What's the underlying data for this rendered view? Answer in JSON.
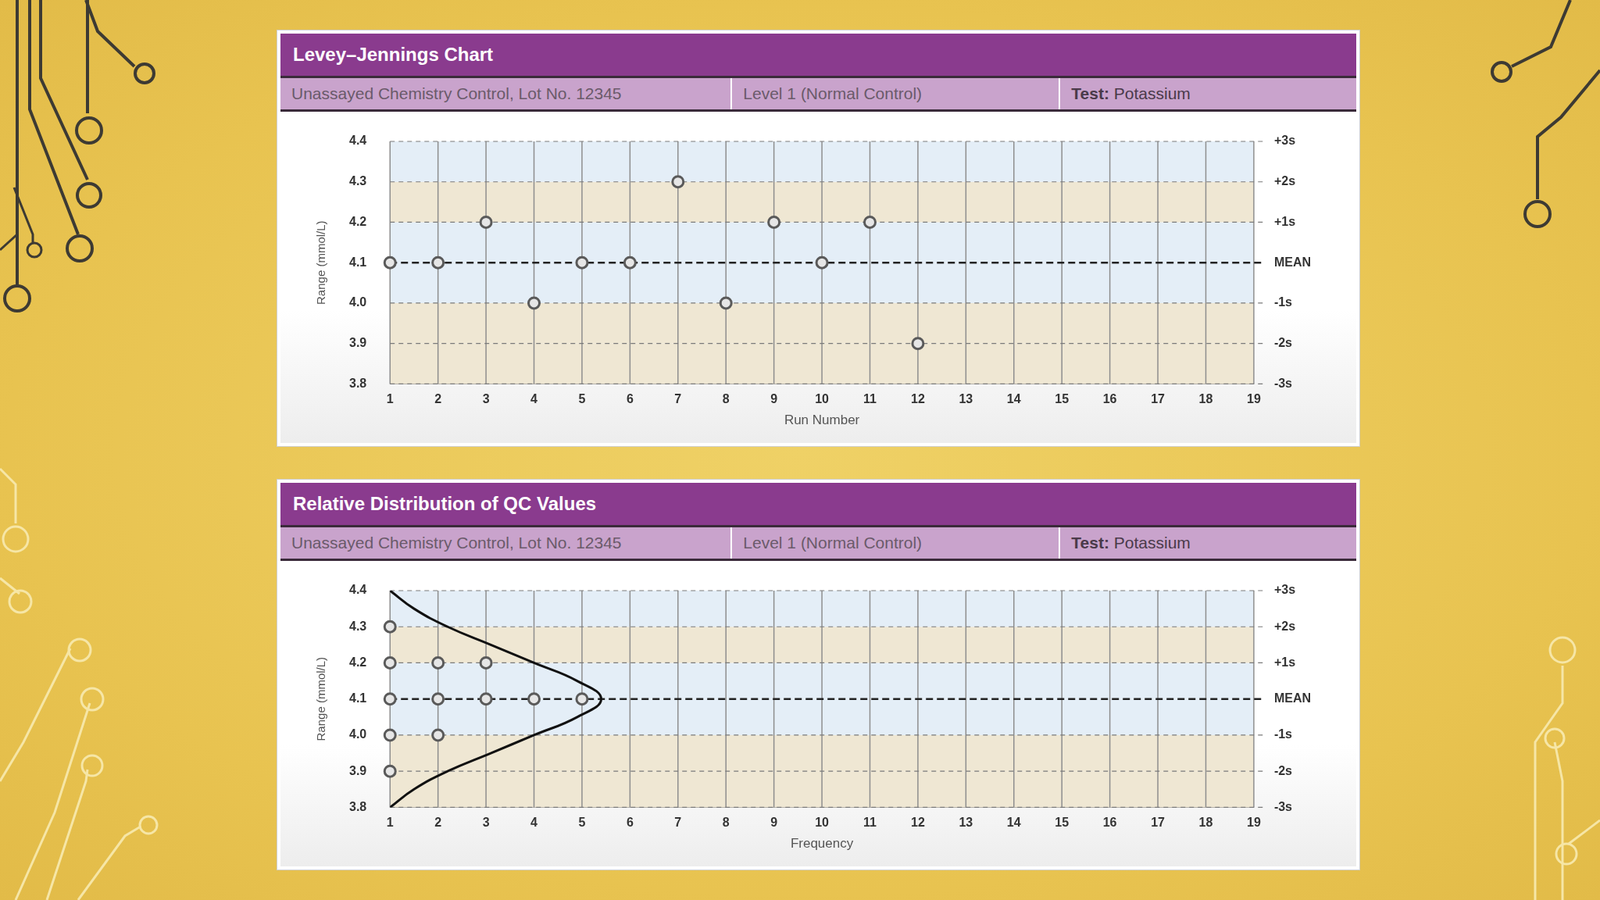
{
  "chart_data": [
    {
      "type": "scatter",
      "title": "Levey–Jennings Chart",
      "subtitle": [
        "Unassayed Chemistry Control, Lot No. 12345",
        "Level 1 (Normal Control)",
        "Test: Potassium"
      ],
      "x_label": "Run Number",
      "y_label": "Range (mmol/L)",
      "x": [
        1,
        2,
        3,
        4,
        5,
        6,
        7,
        8,
        9,
        10,
        11,
        12
      ],
      "values": [
        4.1,
        4.1,
        4.2,
        4.0,
        4.1,
        4.1,
        4.3,
        4.0,
        4.2,
        4.1,
        4.2,
        3.9
      ],
      "color": "#5a5a5a",
      "marker": "circle",
      "xlim": [
        1,
        19
      ],
      "xticks": [
        1,
        2,
        3,
        4,
        5,
        6,
        7,
        8,
        9,
        10,
        11,
        12,
        13,
        14,
        15,
        16,
        17,
        18,
        19
      ],
      "ylim": [
        3.8,
        4.4
      ],
      "yticks": [
        3.8,
        3.9,
        {
          "value": 4,
          "label": "4.0"
        },
        4.1,
        4.2,
        4.3,
        4.4
      ],
      "y2lim": [
        3.8,
        4.4
      ],
      "y2ticks": [
        {
          "value": 3.8,
          "label": "-3s"
        },
        {
          "value": 3.9,
          "label": "-2s"
        },
        {
          "value": 4,
          "label": "-1s"
        },
        {
          "value": 4.1,
          "label": "MEAN"
        },
        {
          "value": 4.2,
          "label": "+1s"
        },
        {
          "value": 4.3,
          "label": "+2s"
        },
        {
          "value": 4.4,
          "label": "+3s"
        }
      ],
      "grid": true
    },
    {
      "type": "scatter",
      "title": "Relative Distribution of QC Values",
      "subtitle": [
        "Unassayed Chemistry Control, Lot No. 12345",
        "Level 1 (Normal Control)",
        "Test: Potassium"
      ],
      "x_label": "Frequency",
      "y_label": "Range (mmol/L)",
      "series": [
        {
          "type": "scatter",
          "marker": "circle",
          "color": "#5a5a5a",
          "x": [
            1,
            1,
            2,
            3,
            1,
            2,
            3,
            4,
            5,
            1,
            2,
            1
          ],
          "values": [
            4.3,
            4.2,
            4.2,
            4.2,
            4.1,
            4.1,
            4.1,
            4.1,
            4.1,
            4.0,
            4.0,
            3.9
          ]
        },
        {
          "type": "line",
          "line_style": "solid",
          "color": "#111111",
          "x": [
            1,
            1.5,
            2.2,
            3.1,
            4.0,
            4.9,
            5.4,
            4.9,
            4.0,
            3.1,
            2.2,
            1.5,
            1
          ],
          "values": [
            4.4,
            4.35,
            4.3,
            4.25,
            4.2,
            4.15,
            4.1,
            4.05,
            4.0,
            3.95,
            3.9,
            3.85,
            3.8
          ]
        }
      ],
      "xlim": [
        1,
        19
      ],
      "xticks": [
        1,
        2,
        3,
        4,
        5,
        6,
        7,
        8,
        9,
        10,
        11,
        12,
        13,
        14,
        15,
        16,
        17,
        18,
        19
      ],
      "ylim": [
        3.8,
        4.4
      ],
      "yticks": [
        3.8,
        3.9,
        {
          "value": 4,
          "label": "4.0"
        },
        4.1,
        4.2,
        4.3,
        4.4
      ],
      "y2lim": [
        3.8,
        4.4
      ],
      "y2ticks": [
        {
          "value": 3.8,
          "label": "-3s"
        },
        {
          "value": 3.9,
          "label": "-2s"
        },
        {
          "value": 4,
          "label": "-1s"
        },
        {
          "value": 4.1,
          "label": "MEAN"
        },
        {
          "value": 4.2,
          "label": "+1s"
        },
        {
          "value": 4.3,
          "label": "+2s"
        },
        {
          "value": 4.4,
          "label": "+3s"
        }
      ],
      "grid": true
    }
  ]
}
